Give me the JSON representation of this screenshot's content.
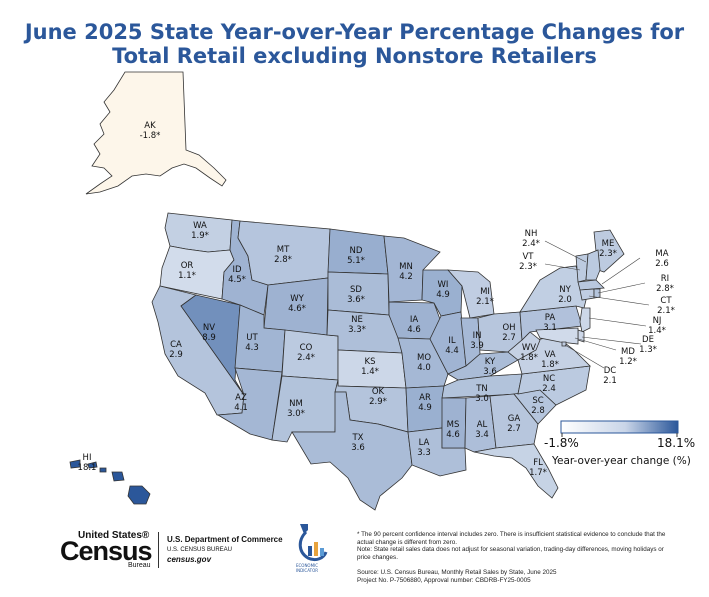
{
  "title": {
    "line1": "June 2025 State Year-over-Year Percentage Changes for",
    "line2": "Total Retail excluding Nonstore Retailers"
  },
  "colors": {
    "title": "#2b579a",
    "scale_low": "#fdf6ea",
    "scale_mid": "#f7f7f7",
    "scale_high": "#2b579a",
    "border": "#333333"
  },
  "legend": {
    "min_label": "-1.8%",
    "max_label": "18.1%",
    "caption": "Year-over-year change (%)",
    "min": -1.8,
    "max": 18.1
  },
  "states": {
    "AK": {
      "abbr": "AK",
      "value_label": "-1.8*",
      "value": -1.8
    },
    "HI": {
      "abbr": "HI",
      "value_label": "18.1",
      "value": 18.1
    },
    "WA": {
      "abbr": "WA",
      "value_label": "1.9*",
      "value": 1.9
    },
    "OR": {
      "abbr": "OR",
      "value_label": "1.1*",
      "value": 1.1
    },
    "CA": {
      "abbr": "CA",
      "value_label": "2.9",
      "value": 2.9
    },
    "NV": {
      "abbr": "NV",
      "value_label": "8.9",
      "value": 8.9
    },
    "ID": {
      "abbr": "ID",
      "value_label": "4.5*",
      "value": 4.5
    },
    "MT": {
      "abbr": "MT",
      "value_label": "2.8*",
      "value": 2.8
    },
    "WY": {
      "abbr": "WY",
      "value_label": "4.6*",
      "value": 4.6
    },
    "UT": {
      "abbr": "UT",
      "value_label": "4.3",
      "value": 4.3
    },
    "CO": {
      "abbr": "CO",
      "value_label": "2.4*",
      "value": 2.4
    },
    "AZ": {
      "abbr": "AZ",
      "value_label": "4.1",
      "value": 4.1
    },
    "NM": {
      "abbr": "NM",
      "value_label": "3.0*",
      "value": 3.0
    },
    "ND": {
      "abbr": "ND",
      "value_label": "5.1*",
      "value": 5.1
    },
    "SD": {
      "abbr": "SD",
      "value_label": "3.6*",
      "value": 3.6
    },
    "NE": {
      "abbr": "NE",
      "value_label": "3.3*",
      "value": 3.3
    },
    "KS": {
      "abbr": "KS",
      "value_label": "1.4*",
      "value": 1.4
    },
    "OK": {
      "abbr": "OK",
      "value_label": "2.9*",
      "value": 2.9
    },
    "TX": {
      "abbr": "TX",
      "value_label": "3.6",
      "value": 3.6
    },
    "MN": {
      "abbr": "MN",
      "value_label": "4.2",
      "value": 4.2
    },
    "IA": {
      "abbr": "IA",
      "value_label": "4.6",
      "value": 4.6
    },
    "MO": {
      "abbr": "MO",
      "value_label": "4.0",
      "value": 4.0
    },
    "AR": {
      "abbr": "AR",
      "value_label": "4.9",
      "value": 4.9
    },
    "LA": {
      "abbr": "LA",
      "value_label": "3.3",
      "value": 3.3
    },
    "WI": {
      "abbr": "WI",
      "value_label": "4.9",
      "value": 4.9
    },
    "IL": {
      "abbr": "IL",
      "value_label": "4.4",
      "value": 4.4
    },
    "MI": {
      "abbr": "MI",
      "value_label": "2.1*",
      "value": 2.1
    },
    "IN": {
      "abbr": "IN",
      "value_label": "3.9",
      "value": 3.9
    },
    "OH": {
      "abbr": "OH",
      "value_label": "2.7",
      "value": 2.7
    },
    "KY": {
      "abbr": "KY",
      "value_label": "3.6",
      "value": 3.6
    },
    "TN": {
      "abbr": "TN",
      "value_label": "3.0",
      "value": 3.0
    },
    "MS": {
      "abbr": "MS",
      "value_label": "4.6",
      "value": 4.6
    },
    "AL": {
      "abbr": "AL",
      "value_label": "3.4",
      "value": 3.4
    },
    "GA": {
      "abbr": "GA",
      "value_label": "2.7",
      "value": 2.7
    },
    "FL": {
      "abbr": "FL",
      "value_label": "1.7*",
      "value": 1.7
    },
    "SC": {
      "abbr": "SC",
      "value_label": "2.8",
      "value": 2.8
    },
    "NC": {
      "abbr": "NC",
      "value_label": "2.4",
      "value": 2.4
    },
    "VA": {
      "abbr": "VA",
      "value_label": "1.8*",
      "value": 1.8
    },
    "WV": {
      "abbr": "WV",
      "value_label": "1.8*",
      "value": 1.8
    },
    "PA": {
      "abbr": "PA",
      "value_label": "3.1",
      "value": 3.1
    },
    "NY": {
      "abbr": "NY",
      "value_label": "2.0",
      "value": 2.0
    },
    "ME": {
      "abbr": "ME",
      "value_label": "2.3*",
      "value": 2.3
    },
    "NH": {
      "abbr": "NH",
      "value_label": "2.4*",
      "value": 2.4
    },
    "VT": {
      "abbr": "VT",
      "value_label": "2.3*",
      "value": 2.3
    },
    "MA": {
      "abbr": "MA",
      "value_label": "2.6",
      "value": 2.6
    },
    "RI": {
      "abbr": "RI",
      "value_label": "2.8*",
      "value": 2.8
    },
    "CT": {
      "abbr": "CT",
      "value_label": "2.1*",
      "value": 2.1
    },
    "NJ": {
      "abbr": "NJ",
      "value_label": "1.4*",
      "value": 1.4
    },
    "DE": {
      "abbr": "DE",
      "value_label": "1.3*",
      "value": 1.3
    },
    "MD": {
      "abbr": "MD",
      "value_label": "1.2*",
      "value": 1.2
    },
    "DC": {
      "abbr": "DC",
      "value_label": "2.1",
      "value": 2.1
    }
  },
  "footer": {
    "logo_united_states": "United States®",
    "logo_census": "Census",
    "logo_bureau": "Bureau",
    "dept": "U.S. Department of Commerce",
    "bureau": "U.S. CENSUS BUREAU",
    "site": "census.gov",
    "econ_indicator": "ECONOMIC INDICATOR",
    "note1": "* The 90 percent confidence interval includes zero. There is insufficient statistical evidence to conclude that the actual change is different from zero.",
    "note2": "Note: State retail sales data does not adjust for seasonal variation, trading-day differences, moving holidays or price changes.",
    "source": "Source: U.S. Census Bureau, Monthly Retail Sales by State, June 2025",
    "project": "Project No. P-7506880, Approval number: CBDRB-FY25-0005"
  }
}
